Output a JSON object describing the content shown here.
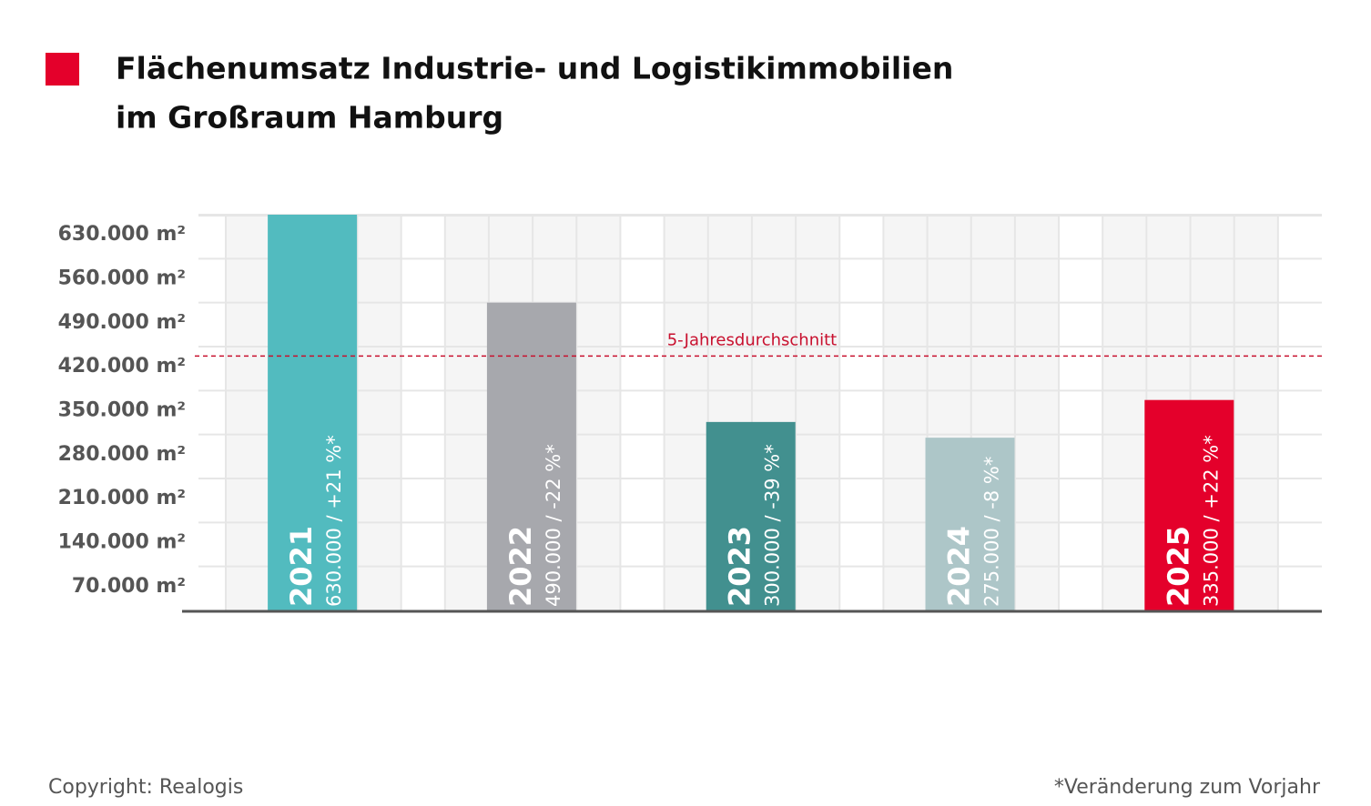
{
  "chart_data": {
    "type": "bar",
    "title_lines": [
      "Flächenumsatz Industrie- und Logistikimmobilien",
      "im Großraum Hamburg"
    ],
    "categories": [
      "2021",
      "2022",
      "2023",
      "2024",
      "2025"
    ],
    "values": [
      630000,
      490000,
      300000,
      275000,
      335000
    ],
    "value_labels": [
      "630.000 / +21 %*",
      "490.000 / -22 %*",
      "300.000 / -39 %*",
      "275.000 / -8 %*",
      "335.000 / +22 %*"
    ],
    "colors": [
      "#52bbbf",
      "#a7a8ad",
      "#42908f",
      "#adc6c8",
      "#e4002b"
    ],
    "ylim": [
      0,
      630000
    ],
    "yticks": [
      {
        "value": 70000,
        "label": "70.000 m²"
      },
      {
        "value": 140000,
        "label": "140.000 m²"
      },
      {
        "value": 210000,
        "label": "210.000 m²"
      },
      {
        "value": 280000,
        "label": "280.000 m²"
      },
      {
        "value": 350000,
        "label": "350.000 m²"
      },
      {
        "value": 420000,
        "label": "420.000 m²"
      },
      {
        "value": 490000,
        "label": "490.000 m²"
      },
      {
        "value": 560000,
        "label": "560.000 m²"
      },
      {
        "value": 630000,
        "label": "630.000 m²"
      }
    ],
    "grid": true,
    "average": {
      "value": 405000,
      "label": "5-Jahresdurchschnitt",
      "color": "#c8102e"
    },
    "copyright": "Copyright: Realogis",
    "footnote": "*Veränderung zum Vorjahr"
  }
}
